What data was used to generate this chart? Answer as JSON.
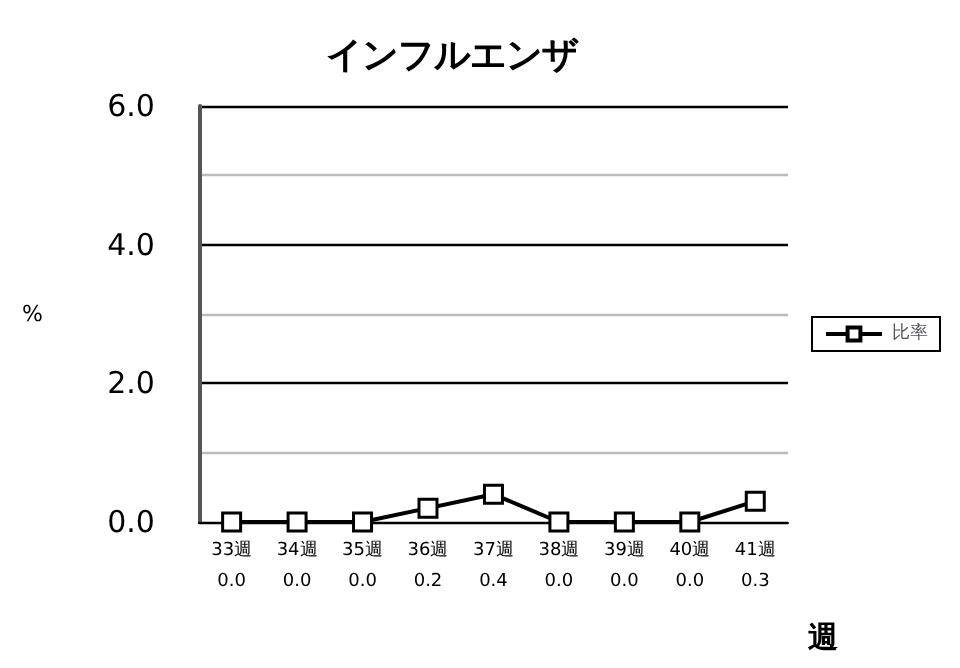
{
  "chart_data": {
    "type": "line",
    "title": "インフルエンザ",
    "xlabel": "週",
    "ylabel": "%",
    "categories": [
      "33週",
      "34週",
      "35週",
      "36週",
      "37週",
      "38週",
      "39週",
      "40週",
      "41週"
    ],
    "series": [
      {
        "name": "比率",
        "color": "#000000",
        "values": [
          0.0,
          0.0,
          0.0,
          0.2,
          0.4,
          0.0,
          0.0,
          0.0,
          0.3
        ],
        "value_labels": [
          "0.0",
          "0.0",
          "0.0",
          "0.2",
          "0.4",
          "0.0",
          "0.0",
          "0.0",
          "0.3"
        ]
      }
    ],
    "ylim": [
      0,
      6
    ],
    "yticks": [
      {
        "value": 0,
        "label": "0.0"
      },
      {
        "value": 1,
        "label": null
      },
      {
        "value": 2,
        "label": "2.0"
      },
      {
        "value": 3,
        "label": null
      },
      {
        "value": 4,
        "label": "4.0"
      },
      {
        "value": 5,
        "label": null
      },
      {
        "value": 6,
        "label": "6.0"
      }
    ],
    "grid": true,
    "legend": "right",
    "marker": "square",
    "line_style": "solid"
  }
}
